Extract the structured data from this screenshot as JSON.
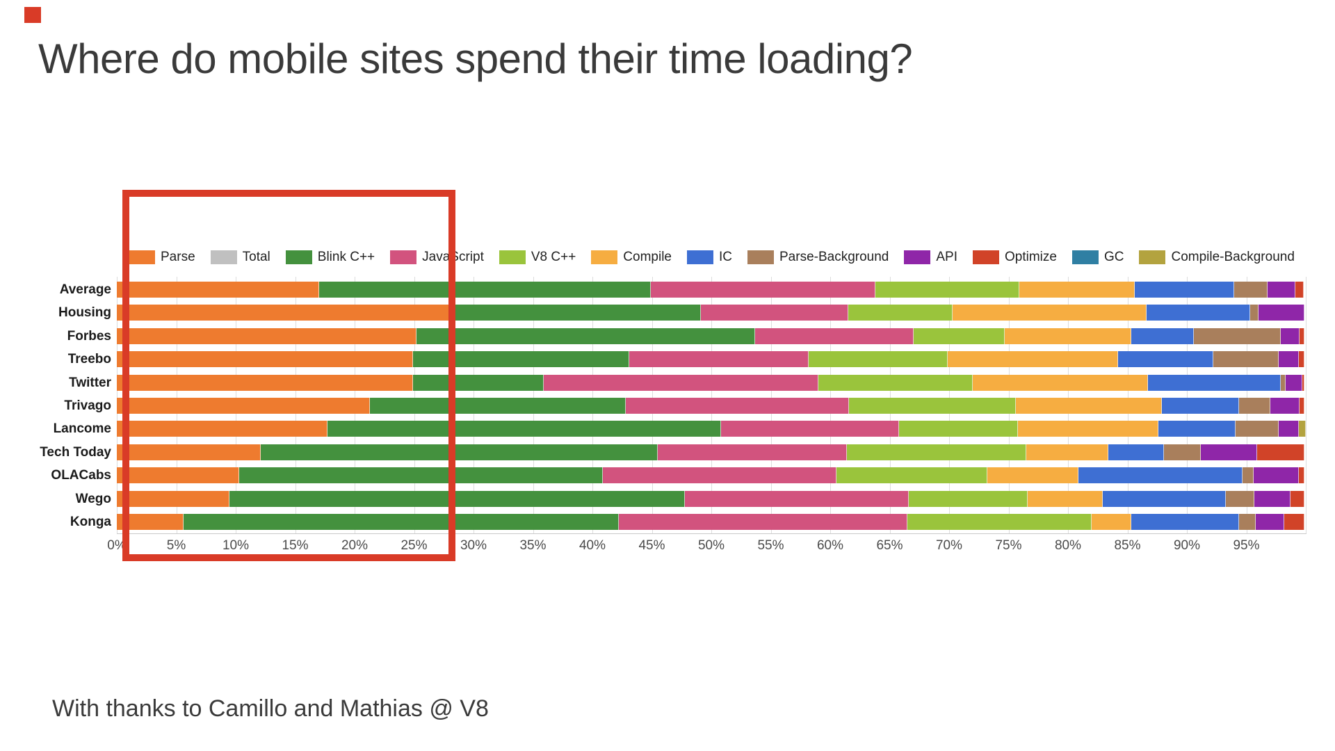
{
  "page": {
    "title": "Where do mobile sites spend their time loading?",
    "footer": "With thanks to Camillo and Mathias @ V8"
  },
  "annotation": {
    "color": "#d93b27",
    "shape": "rectangle-highlight-0-to-28-percent"
  },
  "chart_data": {
    "type": "bar",
    "variant": "horizontal-stacked-100pct",
    "unit": "%",
    "xlim": [
      0,
      100
    ],
    "grid": true,
    "legend_position": "top",
    "x_ticks": [
      "0%",
      "5%",
      "10%",
      "15%",
      "20%",
      "25%",
      "30%",
      "35%",
      "40%",
      "45%",
      "50%",
      "55%",
      "60%",
      "65%",
      "70%",
      "75%",
      "80%",
      "85%",
      "90%",
      "95%"
    ],
    "legend": [
      {
        "name": "Parse",
        "color": "#ee7b2f"
      },
      {
        "name": "Total",
        "color": "#c0c0c0"
      },
      {
        "name": "Blink C++",
        "color": "#44913e"
      },
      {
        "name": "JavaScript",
        "color": "#d2537e"
      },
      {
        "name": "V8 C++",
        "color": "#9ac43c"
      },
      {
        "name": "Compile",
        "color": "#f6ad41"
      },
      {
        "name": "IC",
        "color": "#3e6fd3"
      },
      {
        "name": "Parse-Background",
        "color": "#a97f5c"
      },
      {
        "name": "API",
        "color": "#8f26a8"
      },
      {
        "name": "Optimize",
        "color": "#d14328"
      },
      {
        "name": "GC",
        "color": "#2f7fa3"
      },
      {
        "name": "Compile-Background",
        "color": "#b3a33f"
      }
    ],
    "rows": [
      {
        "label": "Average",
        "values": [
          17.0,
          0,
          27.9,
          18.9,
          12.1,
          9.7,
          8.4,
          2.8,
          2.3,
          0.7,
          0,
          0
        ]
      },
      {
        "label": "Housing",
        "values": [
          28.4,
          0,
          20.7,
          12.4,
          8.8,
          16.3,
          8.7,
          0.7,
          3.9,
          0,
          0,
          0
        ]
      },
      {
        "label": "Forbes",
        "values": [
          25.2,
          0,
          28.5,
          13.3,
          7.7,
          10.6,
          5.3,
          7.3,
          1.6,
          0.4,
          0,
          0
        ]
      },
      {
        "label": "Treebo",
        "values": [
          24.9,
          0,
          18.2,
          15.1,
          11.7,
          14.3,
          8.0,
          5.5,
          1.7,
          0.5,
          0,
          0
        ]
      },
      {
        "label": "Twitter",
        "values": [
          24.9,
          0,
          11.0,
          23.1,
          13.0,
          14.7,
          11.2,
          0.4,
          1.4,
          0.2,
          0,
          0
        ]
      },
      {
        "label": "Trivago",
        "values": [
          21.3,
          0,
          21.5,
          18.8,
          14.0,
          12.3,
          6.5,
          2.6,
          2.5,
          0.4,
          0,
          0
        ]
      },
      {
        "label": "Lancome",
        "values": [
          17.7,
          0,
          33.1,
          15.0,
          10.0,
          11.8,
          6.5,
          3.6,
          1.7,
          0,
          0,
          0.6
        ]
      },
      {
        "label": "Tech Today",
        "values": [
          12.1,
          0,
          33.4,
          15.9,
          15.1,
          6.9,
          4.7,
          3.1,
          4.7,
          4.0,
          0,
          0
        ]
      },
      {
        "label": "OLACabs",
        "values": [
          10.3,
          0,
          30.6,
          19.6,
          12.7,
          7.7,
          13.8,
          0.9,
          3.8,
          0.5,
          0,
          0
        ]
      },
      {
        "label": "Wego",
        "values": [
          9.5,
          0,
          38.3,
          18.8,
          10.0,
          6.3,
          10.4,
          2.4,
          3.0,
          1.2,
          0,
          0
        ]
      },
      {
        "label": "Konga",
        "values": [
          5.6,
          0,
          36.6,
          24.3,
          15.5,
          3.3,
          9.1,
          1.4,
          2.4,
          1.7,
          0,
          0
        ]
      }
    ]
  }
}
